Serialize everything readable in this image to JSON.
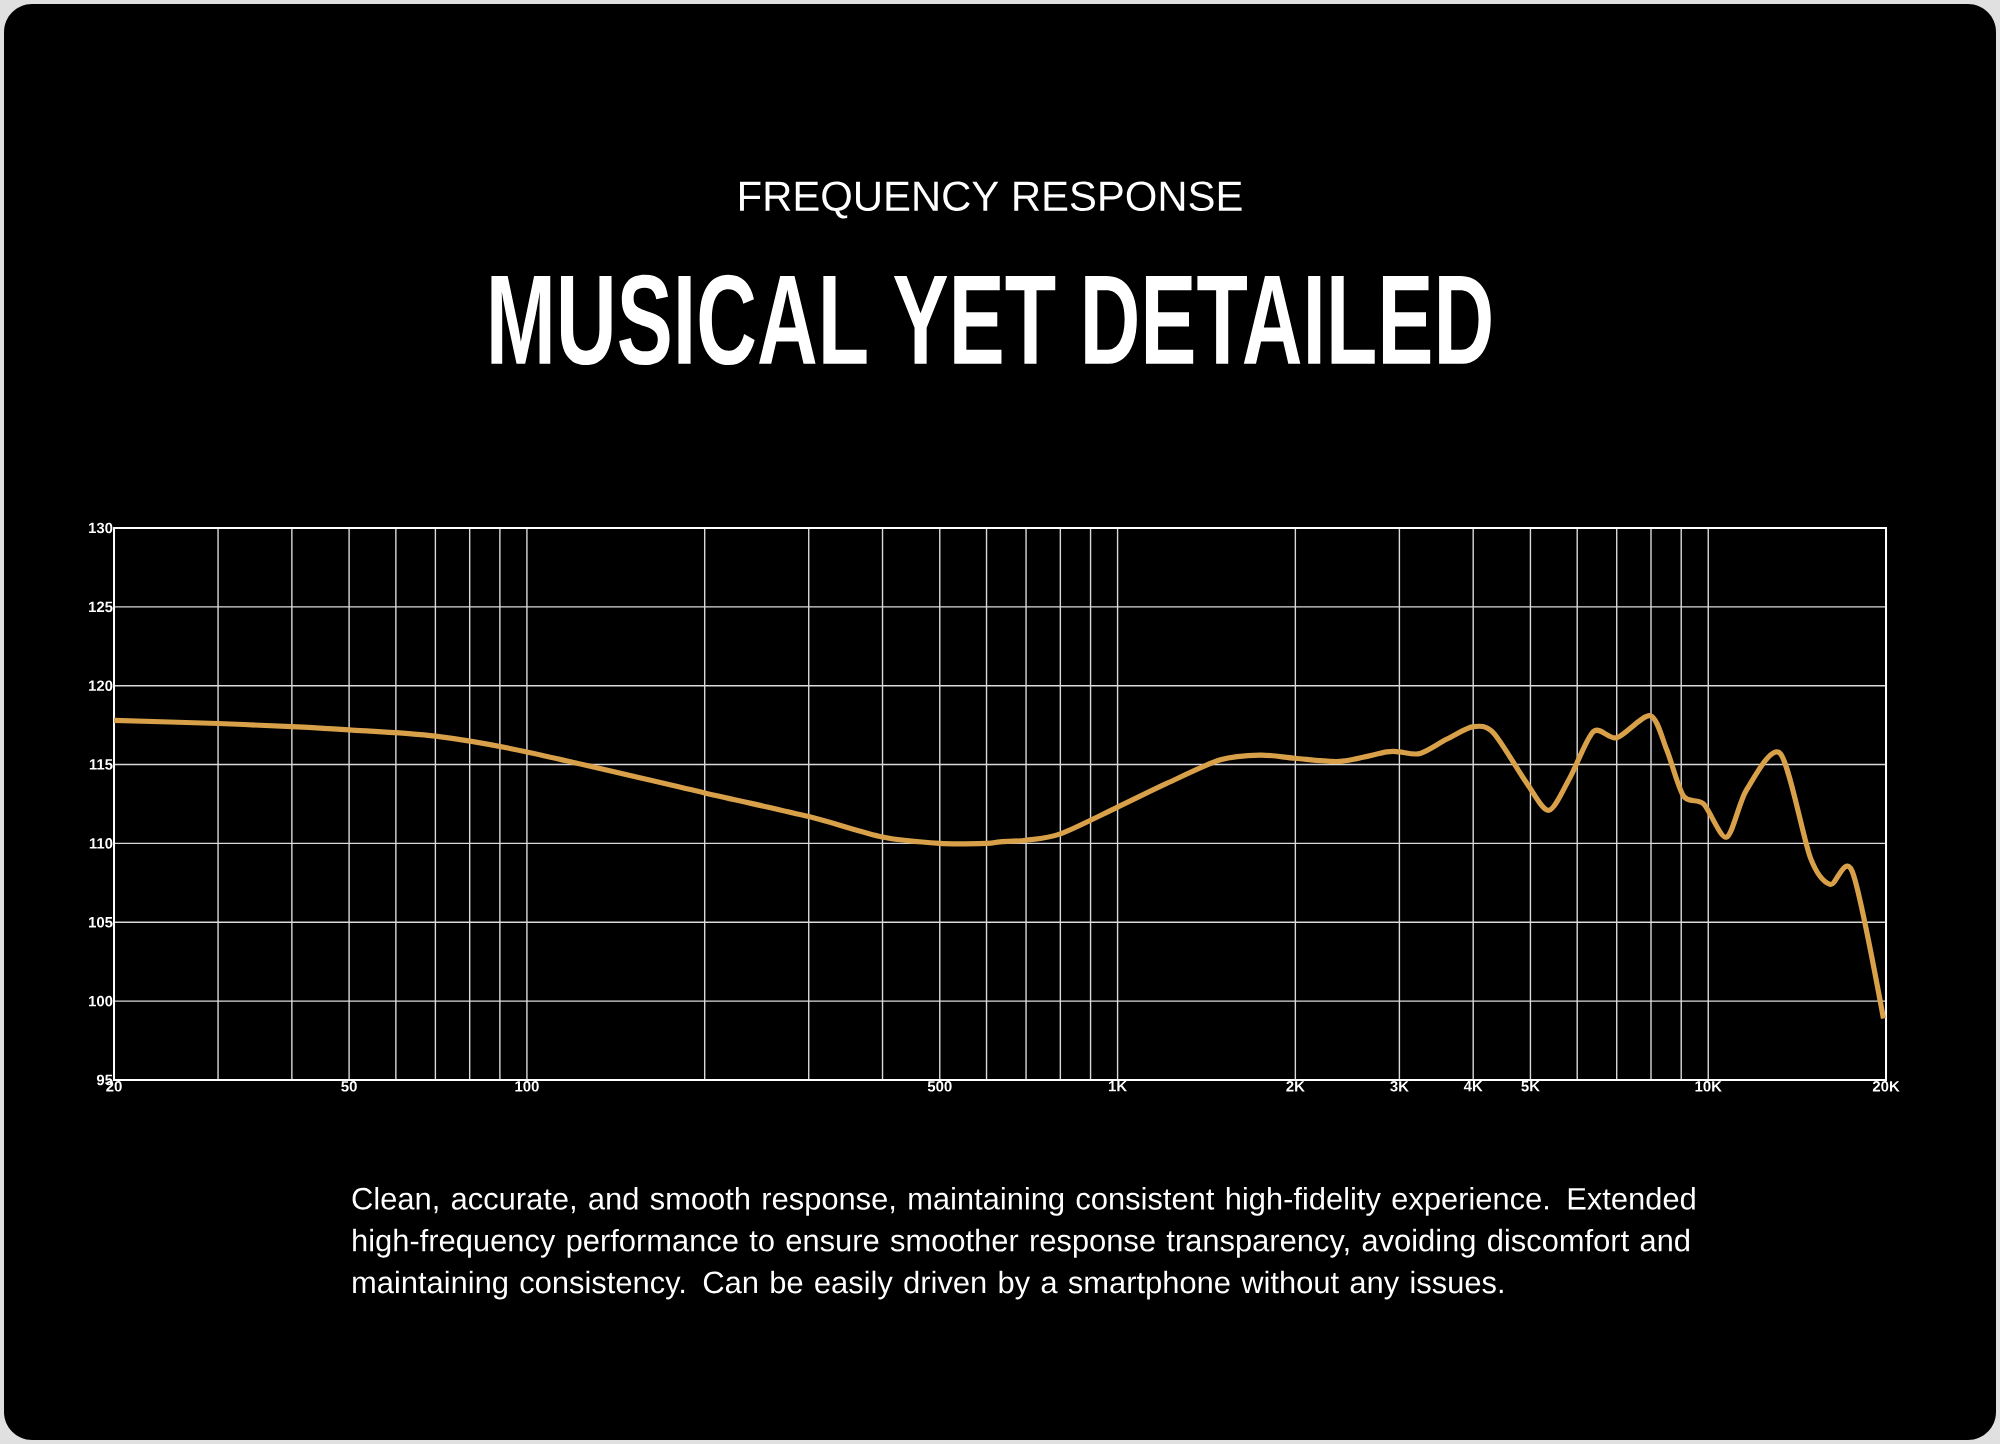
{
  "chart_data": {
    "type": "line",
    "subtitle": "FREQUENCY RESPONSE",
    "title": "MUSICAL YET DETAILED",
    "x": [
      20,
      30,
      40,
      50,
      70,
      100,
      200,
      300,
      400,
      500,
      600,
      632,
      700,
      800,
      1000,
      1211,
      1493,
      1744,
      2000,
      2382,
      2858,
      3000,
      3252,
      3606,
      4000,
      4330,
      4932,
      5374,
      5838,
      6394,
      7000,
      7980,
      8512,
      9080,
      9820,
      10740,
      11614,
      13240,
      14890,
      16090,
      17540,
      19800
    ],
    "series": [
      {
        "color": "#d9a04a",
        "values": [
          117.8,
          117.6,
          117.4,
          117.2,
          116.8,
          115.8,
          113.2,
          111.7,
          110.4,
          110.0,
          110.0,
          110.1,
          110.2,
          110.6,
          112.3,
          113.8,
          115.3,
          115.6,
          115.4,
          115.2,
          115.8,
          115.8,
          115.7,
          116.6,
          117.4,
          117.0,
          113.8,
          112.1,
          114.2,
          117.1,
          116.7,
          118.1,
          115.9,
          113.0,
          112.5,
          110.4,
          113.4,
          115.7,
          109.1,
          107.4,
          108.2,
          98.9
        ]
      }
    ],
    "log": "x",
    "grid": true,
    "xlim": [
      20,
      20000
    ],
    "ylim": [
      95,
      130
    ],
    "xticks": [
      20,
      {
        "value": 30,
        "label": null
      },
      {
        "value": 40,
        "label": null
      },
      50,
      {
        "value": 60,
        "label": null
      },
      {
        "value": 70,
        "label": null
      },
      {
        "value": 80,
        "label": null
      },
      {
        "value": 90,
        "label": null
      },
      100,
      {
        "value": 200,
        "label": null
      },
      {
        "value": 300,
        "label": null
      },
      {
        "value": 400,
        "label": null
      },
      500,
      {
        "value": 600,
        "label": null
      },
      {
        "value": 700,
        "label": null
      },
      {
        "value": 800,
        "label": null
      },
      {
        "value": 900,
        "label": null
      },
      {
        "value": 1000,
        "label": "1K"
      },
      {
        "value": 2000,
        "label": "2K"
      },
      {
        "value": 3000,
        "label": "3K"
      },
      {
        "value": 4000,
        "label": "4K"
      },
      {
        "value": 5000,
        "label": "5K"
      },
      {
        "value": 6000,
        "label": null
      },
      {
        "value": 7000,
        "label": null
      },
      {
        "value": 8000,
        "label": null
      },
      {
        "value": 9000,
        "label": null
      },
      {
        "value": 10000,
        "label": "10K"
      },
      {
        "value": 20000,
        "label": "20K"
      }
    ],
    "yticks": [
      95,
      100,
      105,
      110,
      115,
      120,
      125,
      130
    ],
    "annotations": [
      "Clean, accurate, and smooth response, maintaining consistent high-fidelity experience. Extended high-frequency performance to ensure smoother response transparency, avoiding discomfort and maintaining consistency. Can be easily driven by a smartphone without any issues."
    ]
  }
}
